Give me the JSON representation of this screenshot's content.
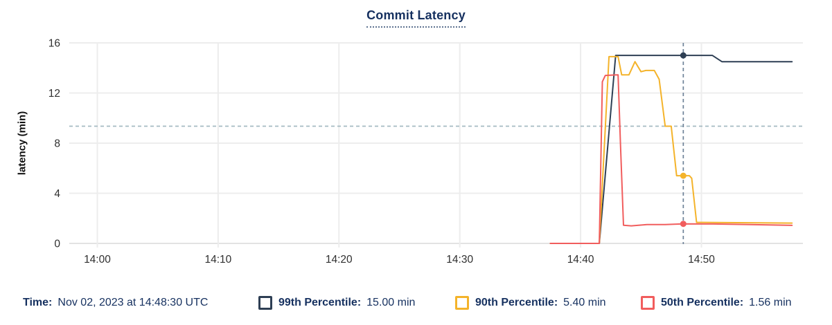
{
  "chart_data": {
    "type": "line",
    "title": "Commit Latency",
    "xlabel": "",
    "ylabel": "latency (min)",
    "x_unit": "minutes after 14:00 UTC on Nov 02, 2023",
    "xlim": [
      -2.32,
      58.4
    ],
    "ylim": [
      0,
      16
    ],
    "grid": true,
    "y_ticks": [
      0,
      4,
      8,
      12,
      16
    ],
    "x_ticks": [
      {
        "t": 0,
        "label": "14:00"
      },
      {
        "t": 10,
        "label": "14:10"
      },
      {
        "t": 20,
        "label": "14:20"
      },
      {
        "t": 30,
        "label": "14:30"
      },
      {
        "t": 40,
        "label": "14:40"
      },
      {
        "t": 50,
        "label": "14:50"
      }
    ],
    "threshold_line": {
      "value": 9.35,
      "style": "dashed"
    },
    "cursor": {
      "t": 48.5,
      "time_label": "Nov 02, 2023 at 14:48:30 UTC"
    },
    "series": [
      {
        "name": "99th Percentile",
        "color": "#2e3f54",
        "at_cursor": 15.0,
        "points": [
          [
            37.5,
            0
          ],
          [
            41.55,
            0
          ],
          [
            42.9,
            15.0
          ],
          [
            50.9,
            15.0
          ],
          [
            51.7,
            14.5
          ],
          [
            57.5,
            14.5
          ]
        ]
      },
      {
        "name": "90th Percentile",
        "color": "#f4b32a",
        "at_cursor": 5.4,
        "points": [
          [
            37.5,
            0
          ],
          [
            41.55,
            0
          ],
          [
            42.35,
            14.9
          ],
          [
            43.1,
            14.9
          ],
          [
            43.4,
            13.45
          ],
          [
            44.0,
            13.45
          ],
          [
            44.5,
            14.5
          ],
          [
            45.0,
            13.7
          ],
          [
            45.4,
            13.8
          ],
          [
            46.1,
            13.8
          ],
          [
            46.5,
            13.1
          ],
          [
            47.0,
            9.35
          ],
          [
            47.5,
            9.35
          ],
          [
            47.95,
            5.4
          ],
          [
            49.0,
            5.4
          ],
          [
            49.2,
            5.2
          ],
          [
            49.6,
            1.68
          ],
          [
            57.5,
            1.62
          ]
        ]
      },
      {
        "name": "50th Percentile",
        "color": "#f15d5d",
        "at_cursor": 1.56,
        "points": [
          [
            37.5,
            0
          ],
          [
            41.55,
            0
          ],
          [
            41.8,
            12.9
          ],
          [
            42.05,
            13.4
          ],
          [
            43.1,
            13.45
          ],
          [
            43.3,
            8.0
          ],
          [
            43.55,
            1.45
          ],
          [
            44.2,
            1.4
          ],
          [
            45.5,
            1.5
          ],
          [
            47.0,
            1.5
          ],
          [
            48.5,
            1.56
          ],
          [
            51.0,
            1.55
          ],
          [
            54.0,
            1.5
          ],
          [
            57.5,
            1.44
          ]
        ]
      }
    ],
    "legend_position": "bottom"
  },
  "legend": {
    "time_label": "Time:",
    "time_value": "Nov 02, 2023 at 14:48:30 UTC",
    "items": [
      {
        "label": "99th Percentile:",
        "value": "15.00 min",
        "color": "#2e3f54"
      },
      {
        "label": "90th Percentile:",
        "value": "5.40 min",
        "color": "#f4b32a"
      },
      {
        "label": "50th Percentile:",
        "value": "1.56 min",
        "color": "#f15d5d"
      }
    ]
  },
  "colors": {
    "text_navy": "#15305f",
    "tick_text": "#2f2f2f",
    "grid": "#ededed",
    "zero_line": "#e2e2e2",
    "threshold": "#a5bac2",
    "cursor_line": "#6e8298",
    "title_underline": "#5d7290"
  }
}
